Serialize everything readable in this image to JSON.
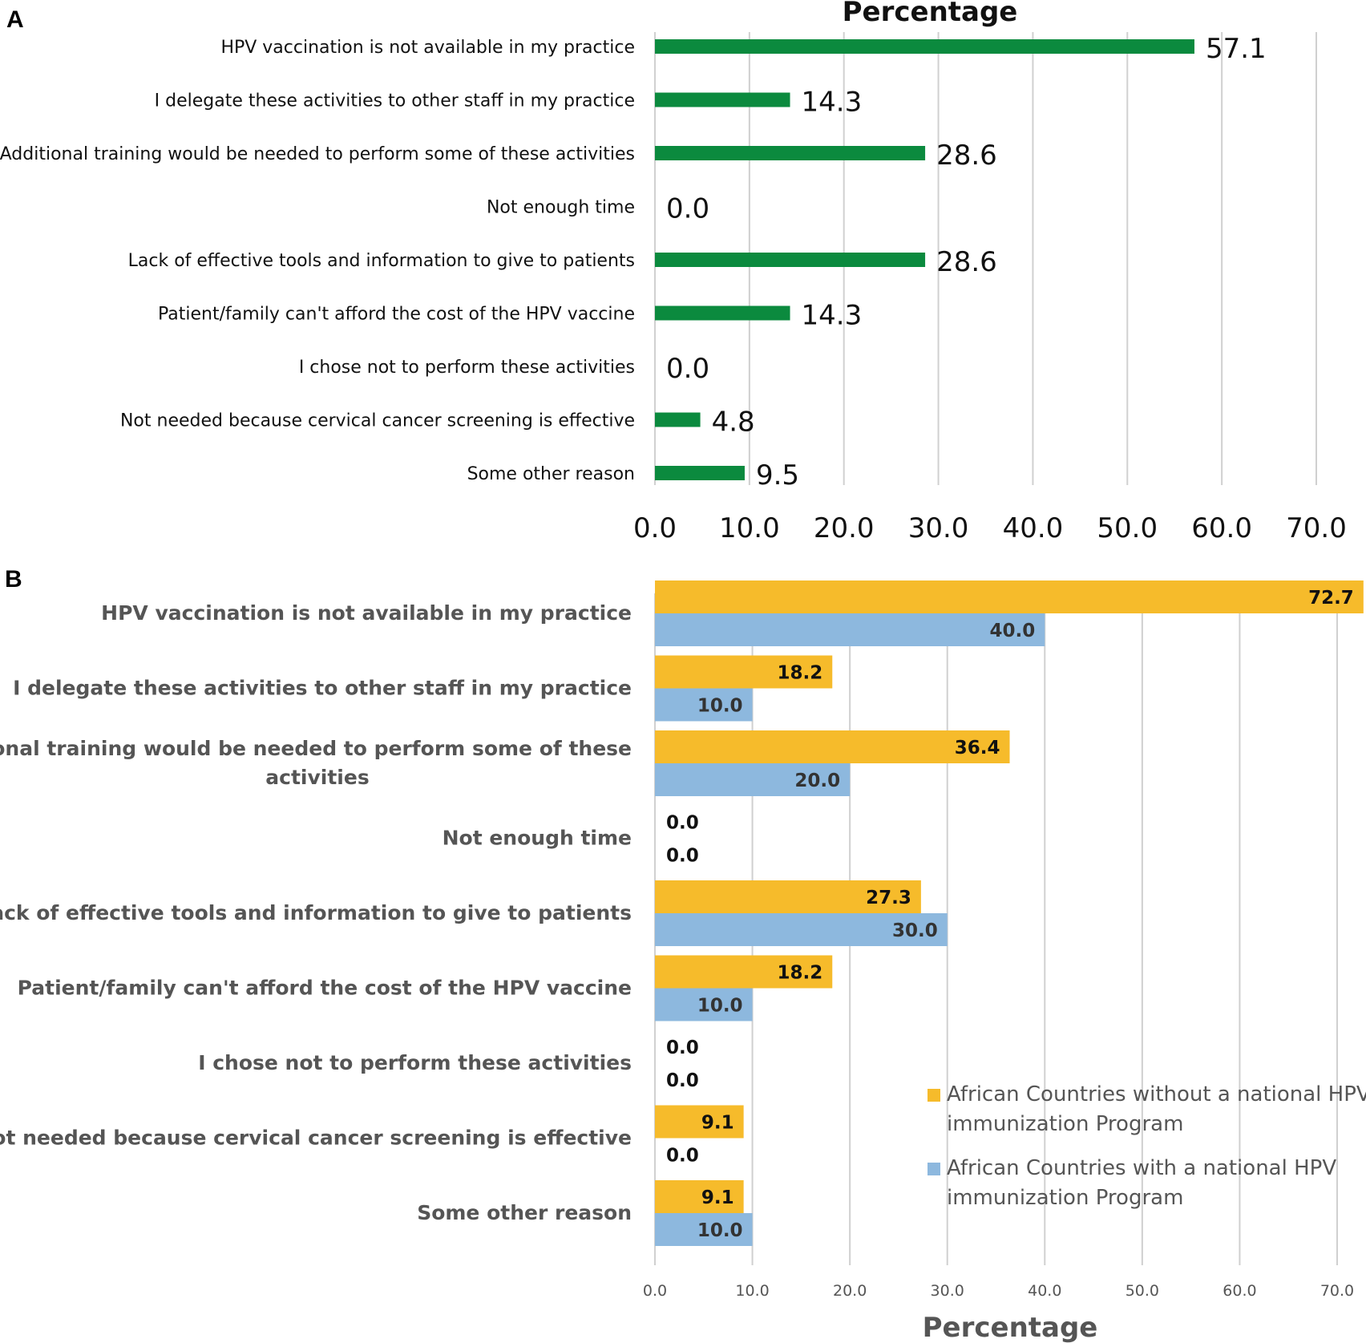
{
  "chart_data": [
    {
      "panel": "A",
      "type": "bar",
      "orientation": "horizontal",
      "title": "Percentage",
      "categories": [
        "HPV vaccination is not available in my practice",
        "I delegate these activities to other staff in my practice",
        "Additional training would be needed to perform some of these activities",
        "Not enough time",
        "Lack of effective tools and information to give to patients",
        "Patient/family can't afford the cost of the HPV vaccine",
        "I chose not to perform these activities",
        "Not needed because cervical cancer screening is effective",
        "Some other reason"
      ],
      "values": [
        57.1,
        14.3,
        28.6,
        0.0,
        28.6,
        14.3,
        0.0,
        4.8,
        9.5
      ],
      "value_labels": [
        "57.1",
        "14.3",
        "28.6",
        "0.0",
        "28.6",
        "14.3",
        "0.0",
        "4.8",
        "9.5"
      ],
      "xlim": [
        0,
        70
      ],
      "ticks": [
        0,
        10,
        20,
        30,
        40,
        50,
        60,
        70
      ],
      "tick_labels": [
        "0.0",
        "10.0",
        "20.0",
        "30.0",
        "40.0",
        "50.0",
        "60.0",
        "70.0"
      ],
      "grid": true,
      "color": "#0b8a3e"
    },
    {
      "panel": "B",
      "type": "bar",
      "orientation": "horizontal",
      "xlabel": "Percentage",
      "categories": [
        [
          "HPV vaccination is not available in my practice"
        ],
        [
          "I delegate these activities to other staff in my practice"
        ],
        [
          "Additional training would be needed to perform some of these",
          "activities"
        ],
        [
          "Not enough time"
        ],
        [
          "Lack of effective tools and information to give to patients"
        ],
        [
          "Patient/family can't afford the cost of the HPV vaccine"
        ],
        [
          "I chose not to perform these activities"
        ],
        [
          "Not needed because cervical cancer screening is effective"
        ],
        [
          "Some other reason"
        ]
      ],
      "series": [
        {
          "name": "African Countries without a national HPV immunization Program",
          "legend_lines": [
            "African Countries without a national HPV",
            "immunization Program"
          ],
          "values": [
            72.7,
            18.2,
            36.4,
            0.0,
            27.3,
            18.2,
            0.0,
            9.1,
            9.1
          ],
          "value_labels": [
            "72.7",
            "18.2",
            "36.4",
            "0.0",
            "27.3",
            "18.2",
            "0.0",
            "9.1",
            "9.1"
          ],
          "color": "#f6bb2b"
        },
        {
          "name": "African Countries with a national HPV immunization Program",
          "legend_lines": [
            "African Countries with a national HPV",
            "immunization Program"
          ],
          "values": [
            40.0,
            10.0,
            20.0,
            0.0,
            30.0,
            10.0,
            0.0,
            0.0,
            10.0
          ],
          "value_labels": [
            "40.0",
            "10.0",
            "20.0",
            "0.0",
            "30.0",
            "10.0",
            "0.0",
            "0.0",
            "10.0"
          ],
          "color": "#8db8de"
        }
      ],
      "xlim": [
        0,
        70
      ],
      "ticks": [
        0,
        10,
        20,
        30,
        40,
        50,
        60,
        70
      ],
      "tick_labels": [
        "0.0",
        "10.0",
        "20.0",
        "30.0",
        "40.0",
        "50.0",
        "60.0",
        "70.0"
      ],
      "grid": true,
      "legend_position": "bottom-right"
    }
  ],
  "panel_labels": {
    "a": "A",
    "b": "B"
  },
  "colors": {
    "grid": "#d0d0d0"
  }
}
